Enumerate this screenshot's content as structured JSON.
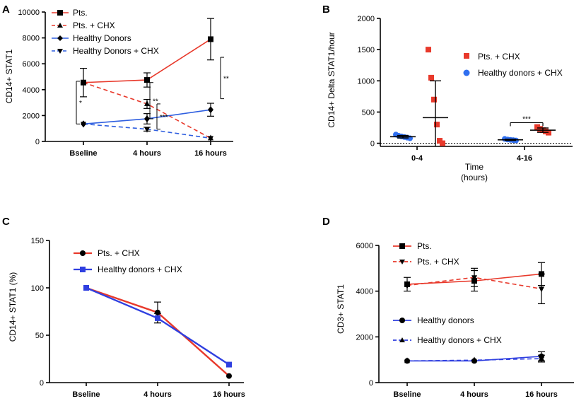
{
  "chart_data": [
    {
      "panel": "A",
      "type": "line",
      "ylabel": "CD14+ STAT1",
      "categories": [
        "Bseline",
        "4 hours",
        "16 hours"
      ],
      "ylim": [
        0,
        10000
      ],
      "yticks": [
        0,
        2000,
        4000,
        6000,
        8000,
        10000
      ],
      "series": [
        {
          "name": "Pts.",
          "values": [
            4550,
            4750,
            7900
          ],
          "errors": [
            1100,
            550,
            1600
          ],
          "color": "#e8392b",
          "dashed": false,
          "marker": "square"
        },
        {
          "name": "Pts. + CHX",
          "values": [
            4550,
            2900,
            250
          ],
          "errors": [
            0,
            350,
            0
          ],
          "color": "#e8392b",
          "dashed": true,
          "marker": "triangle-up"
        },
        {
          "name": "Healthy Donors",
          "values": [
            1350,
            1750,
            2450
          ],
          "errors": [
            0,
            400,
            500
          ],
          "color": "#2f5fe0",
          "dashed": false,
          "marker": "diamond"
        },
        {
          "name": "Healthy Donors + CHX",
          "values": [
            1350,
            950,
            250
          ],
          "errors": [
            0,
            150,
            0
          ],
          "color": "#2f5fe0",
          "dashed": true,
          "marker": "triangle-down"
        }
      ],
      "significance": [
        {
          "label": "*",
          "category": 0,
          "y_from": 1350,
          "y_to": 4650
        },
        {
          "label": "**",
          "category": 1,
          "y_from": 1750,
          "y_to": 4550
        },
        {
          "label": "***",
          "category": 1,
          "y_from": 950,
          "y_to": 2900
        },
        {
          "label": "**",
          "category": 2,
          "y_from": 3300,
          "y_to": 6500
        }
      ]
    },
    {
      "panel": "B",
      "type": "scatter",
      "ylabel": "CD14+ Delta STAT1/hour",
      "xlabel": "Time\n(hours)",
      "categories": [
        "0-4",
        "4-16"
      ],
      "ylim": [
        -50,
        2000
      ],
      "yticks": [
        0,
        500,
        1000,
        1500,
        2000
      ],
      "series": [
        {
          "name": "Pts. + CHX",
          "color": "#e8392b",
          "marker": "square",
          "groups": [
            {
              "category": 0,
              "points": [
                1500,
                1050,
                700,
                300,
                40,
                0
              ],
              "mean": 410,
              "sd": 590
            },
            {
              "category": 1,
              "points": [
                260,
                230,
                210,
                190,
                170
              ],
              "mean": 210,
              "sd": 35
            }
          ]
        },
        {
          "name": "Healthy donors + CHX",
          "color": "#2f6ff0",
          "marker": "circle",
          "groups": [
            {
              "category": 0,
              "points": [
                140,
                120,
                110,
                100,
                90,
                80
              ],
              "mean": 105,
              "sd": 20
            },
            {
              "category": 1,
              "points": [
                70,
                60,
                55,
                50,
                45
              ],
              "mean": 55,
              "sd": 10
            }
          ]
        }
      ],
      "significance": [
        {
          "label": "***",
          "category": 1,
          "y": 330
        }
      ]
    },
    {
      "panel": "C",
      "type": "line",
      "ylabel": "CD14+ STAT1 (%)",
      "categories": [
        "Bseline",
        "4 hours",
        "16 hours"
      ],
      "ylim": [
        0,
        150
      ],
      "yticks": [
        0,
        50,
        100,
        150
      ],
      "series": [
        {
          "name": "Pts. + CHX",
          "values": [
            100,
            74,
            7
          ],
          "errors": [
            0,
            11,
            0
          ],
          "color": "#e8392b",
          "dashed": false,
          "marker": "circle"
        },
        {
          "name": "Healthy donors + CHX",
          "values": [
            100,
            68,
            19
          ],
          "errors": [
            0,
            5,
            0
          ],
          "color": "#2f3fe0",
          "dashed": false,
          "marker": "square"
        }
      ]
    },
    {
      "panel": "D",
      "type": "line",
      "ylabel": "CD3+ STAT1",
      "categories": [
        "Bseline",
        "4 hours",
        "16 hours"
      ],
      "ylim": [
        0,
        6000
      ],
      "yticks": [
        0,
        2000,
        4000,
        6000
      ],
      "series": [
        {
          "name": "Pts.",
          "values": [
            4300,
            4450,
            4750
          ],
          "errors": [
            300,
            450,
            500
          ],
          "color": "#e8392b",
          "dashed": false,
          "marker": "square"
        },
        {
          "name": "Pts. + CHX",
          "values": [
            4250,
            4600,
            4100
          ],
          "errors": [
            0,
            400,
            650
          ],
          "color": "#e8392b",
          "dashed": true,
          "marker": "triangle-down"
        },
        {
          "name": "Healthy donors",
          "values": [
            950,
            950,
            1150
          ],
          "errors": [
            0,
            0,
            200
          ],
          "color": "#2f3fe0",
          "dashed": false,
          "marker": "circle"
        },
        {
          "name": "Healthy donors + CHX",
          "values": [
            950,
            980,
            1050
          ],
          "errors": [
            0,
            0,
            150
          ],
          "color": "#2f3fe0",
          "dashed": true,
          "marker": "triangle-up"
        }
      ]
    }
  ]
}
